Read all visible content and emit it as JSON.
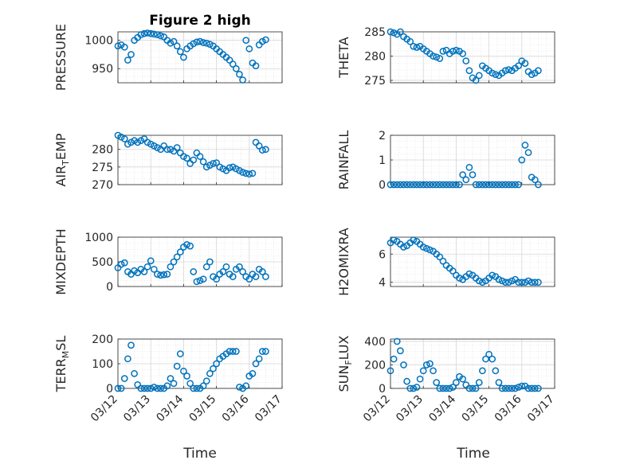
{
  "figure_title": "Figure 2 high",
  "xlabel": "Time",
  "x_ticks": [
    "03/12",
    "03/13",
    "03/14",
    "03/15",
    "03/16",
    "03/17"
  ],
  "colors": {
    "marker": "#0072BD",
    "axis": "#262626",
    "grid": "#dddddd"
  },
  "chart_data": [
    {
      "type": "scatter",
      "ylabel": "PRESSURE",
      "ylim": [
        925,
        1015
      ],
      "yticks": [
        950,
        1000
      ],
      "grid": true,
      "x": [
        0.0,
        0.1,
        0.2,
        0.3,
        0.4,
        0.5,
        0.6,
        0.7,
        0.8,
        0.9,
        1.0,
        1.1,
        1.2,
        1.3,
        1.4,
        1.5,
        1.6,
        1.7,
        1.8,
        1.9,
        2.0,
        2.1,
        2.2,
        2.3,
        2.4,
        2.5,
        2.6,
        2.7,
        2.8,
        2.9,
        3.0,
        3.1,
        3.2,
        3.3,
        3.4,
        3.5,
        3.6,
        3.7,
        3.8,
        3.9,
        4.0,
        4.1,
        4.2,
        4.3,
        4.4,
        4.5
      ],
      "y": [
        990,
        992,
        988,
        965,
        975,
        1000,
        1005,
        1010,
        1012,
        1013,
        1012,
        1011,
        1010,
        1008,
        1006,
        1000,
        995,
        998,
        990,
        980,
        970,
        985,
        990,
        994,
        997,
        998,
        996,
        995,
        993,
        990,
        985,
        980,
        975,
        970,
        965,
        958,
        950,
        940,
        930,
        1000,
        985,
        960,
        955,
        992,
        998,
        1001
      ]
    },
    {
      "type": "scatter",
      "ylabel": "THETA",
      "ylim": [
        274.5,
        285
      ],
      "yticks": [
        275,
        280,
        285
      ],
      "grid": true,
      "x": [
        0.0,
        0.1,
        0.2,
        0.3,
        0.4,
        0.5,
        0.6,
        0.7,
        0.8,
        0.9,
        1.0,
        1.1,
        1.2,
        1.3,
        1.4,
        1.5,
        1.6,
        1.7,
        1.8,
        1.9,
        2.0,
        2.1,
        2.2,
        2.3,
        2.4,
        2.5,
        2.6,
        2.7,
        2.8,
        2.9,
        3.0,
        3.1,
        3.2,
        3.3,
        3.4,
        3.5,
        3.6,
        3.7,
        3.8,
        3.9,
        4.0,
        4.1,
        4.2,
        4.3,
        4.4,
        4.5
      ],
      "y": [
        285,
        284.8,
        284.5,
        285,
        284,
        283.5,
        283,
        282,
        281.8,
        282,
        281.5,
        281,
        280.5,
        280,
        279.8,
        279.5,
        281,
        281.2,
        280.5,
        281,
        281.2,
        281,
        280.5,
        279,
        277,
        275.5,
        275,
        276,
        278,
        277.5,
        277,
        276.5,
        276.2,
        276,
        276.5,
        277,
        277.2,
        277,
        277.5,
        278,
        279,
        278.5,
        276.8,
        276.2,
        276.5,
        277
      ]
    },
    {
      "type": "scatter",
      "ylabel": "AIR_TEMP",
      "ylim": [
        270,
        284
      ],
      "yticks": [
        270,
        275,
        280
      ],
      "grid": true,
      "x": [
        0.0,
        0.1,
        0.2,
        0.3,
        0.4,
        0.5,
        0.6,
        0.7,
        0.8,
        0.9,
        1.0,
        1.1,
        1.2,
        1.3,
        1.4,
        1.5,
        1.6,
        1.7,
        1.8,
        1.9,
        2.0,
        2.1,
        2.2,
        2.3,
        2.4,
        2.5,
        2.6,
        2.7,
        2.8,
        2.9,
        3.0,
        3.1,
        3.2,
        3.3,
        3.4,
        3.5,
        3.6,
        3.7,
        3.8,
        3.9,
        4.0,
        4.1,
        4.2,
        4.3,
        4.4,
        4.5
      ],
      "y": [
        284,
        283.5,
        283,
        281.5,
        282,
        282.5,
        282,
        282.5,
        283,
        282,
        281.5,
        281,
        280.5,
        280,
        281,
        280,
        280,
        279.5,
        280.5,
        279,
        278,
        277.5,
        276,
        277,
        279,
        278,
        276.5,
        275,
        275.5,
        276,
        276.2,
        275,
        274.5,
        274,
        274.8,
        275,
        274.5,
        274,
        273.5,
        273.2,
        273,
        273.2,
        282,
        281,
        279.8,
        280
      ]
    },
    {
      "type": "scatter",
      "ylabel": "RAINFALL",
      "ylim": [
        0,
        2
      ],
      "yticks": [
        0,
        1,
        2
      ],
      "grid": true,
      "x": [
        0.0,
        0.1,
        0.2,
        0.3,
        0.4,
        0.5,
        0.6,
        0.7,
        0.8,
        0.9,
        1.0,
        1.1,
        1.2,
        1.3,
        1.4,
        1.5,
        1.6,
        1.7,
        1.8,
        1.9,
        2.0,
        2.1,
        2.2,
        2.3,
        2.4,
        2.5,
        2.6,
        2.7,
        2.8,
        2.9,
        3.0,
        3.1,
        3.2,
        3.3,
        3.4,
        3.5,
        3.6,
        3.7,
        3.8,
        3.9,
        4.0,
        4.1,
        4.2,
        4.3,
        4.4,
        4.5
      ],
      "y": [
        0,
        0,
        0,
        0,
        0,
        0,
        0,
        0,
        0,
        0,
        0,
        0,
        0,
        0,
        0,
        0,
        0,
        0,
        0,
        0,
        0,
        0,
        0.4,
        0.2,
        0.7,
        0.4,
        0,
        0,
        0,
        0,
        0,
        0,
        0,
        0,
        0,
        0,
        0,
        0,
        0,
        0,
        1,
        1.6,
        1.3,
        0.3,
        0.2,
        0
      ]
    },
    {
      "type": "scatter",
      "ylabel": "MIXDEPTH",
      "ylim": [
        0,
        1000
      ],
      "yticks": [
        0,
        500,
        1000
      ],
      "grid": true,
      "x": [
        0.0,
        0.1,
        0.2,
        0.3,
        0.4,
        0.5,
        0.6,
        0.7,
        0.8,
        0.9,
        1.0,
        1.1,
        1.2,
        1.3,
        1.4,
        1.5,
        1.6,
        1.7,
        1.8,
        1.9,
        2.0,
        2.1,
        2.2,
        2.3,
        2.4,
        2.5,
        2.6,
        2.7,
        2.8,
        2.9,
        3.0,
        3.1,
        3.2,
        3.3,
        3.4,
        3.5,
        3.6,
        3.7,
        3.8,
        3.9,
        4.0,
        4.1,
        4.2,
        4.3,
        4.4,
        4.5
      ],
      "y": [
        380,
        450,
        480,
        300,
        250,
        320,
        280,
        350,
        300,
        400,
        520,
        350,
        250,
        230,
        240,
        250,
        400,
        500,
        600,
        700,
        800,
        850,
        820,
        300,
        100,
        120,
        150,
        400,
        500,
        200,
        150,
        250,
        300,
        400,
        250,
        200,
        350,
        400,
        300,
        200,
        150,
        250,
        200,
        350,
        300,
        200
      ]
    },
    {
      "type": "scatter",
      "ylabel": "H2OMIXRA",
      "ylim": [
        3.7,
        7.2
      ],
      "yticks": [
        4,
        6
      ],
      "grid": true,
      "x": [
        0.0,
        0.1,
        0.2,
        0.3,
        0.4,
        0.5,
        0.6,
        0.7,
        0.8,
        0.9,
        1.0,
        1.1,
        1.2,
        1.3,
        1.4,
        1.5,
        1.6,
        1.7,
        1.8,
        1.9,
        2.0,
        2.1,
        2.2,
        2.3,
        2.4,
        2.5,
        2.6,
        2.7,
        2.8,
        2.9,
        3.0,
        3.1,
        3.2,
        3.3,
        3.4,
        3.5,
        3.6,
        3.7,
        3.8,
        3.9,
        4.0,
        4.1,
        4.2,
        4.3,
        4.4,
        4.5
      ],
      "y": [
        6.8,
        7.0,
        6.9,
        6.7,
        6.5,
        6.6,
        6.8,
        7.0,
        6.9,
        6.7,
        6.5,
        6.4,
        6.3,
        6.2,
        6.0,
        5.8,
        5.5,
        5.2,
        5.0,
        4.8,
        4.5,
        4.3,
        4.2,
        4.4,
        4.6,
        4.5,
        4.3,
        4.1,
        4.0,
        4.1,
        4.3,
        4.5,
        4.4,
        4.2,
        4.1,
        4.0,
        4.0,
        4.1,
        4.2,
        4.0,
        4.0,
        4.0,
        4.1,
        4.0,
        4.0,
        4.0
      ]
    },
    {
      "type": "scatter",
      "ylabel": "TERR_MSL",
      "ylim": [
        0,
        200
      ],
      "yticks": [
        0,
        100,
        200
      ],
      "grid": true,
      "x": [
        0.0,
        0.1,
        0.2,
        0.3,
        0.4,
        0.5,
        0.6,
        0.7,
        0.8,
        0.9,
        1.0,
        1.1,
        1.2,
        1.3,
        1.4,
        1.5,
        1.6,
        1.7,
        1.8,
        1.9,
        2.0,
        2.1,
        2.2,
        2.3,
        2.4,
        2.5,
        2.6,
        2.7,
        2.8,
        2.9,
        3.0,
        3.1,
        3.2,
        3.3,
        3.4,
        3.5,
        3.6,
        3.7,
        3.8,
        3.9,
        4.0,
        4.1,
        4.2,
        4.3,
        4.4,
        4.5
      ],
      "y": [
        0,
        0,
        40,
        120,
        175,
        60,
        15,
        0,
        0,
        0,
        0,
        5,
        0,
        0,
        0,
        10,
        40,
        20,
        90,
        140,
        70,
        50,
        20,
        0,
        0,
        0,
        10,
        30,
        60,
        80,
        100,
        120,
        130,
        140,
        150,
        150,
        150,
        5,
        0,
        10,
        50,
        60,
        100,
        120,
        150,
        150
      ]
    },
    {
      "type": "scatter",
      "ylabel": "SUN_FLUX",
      "ylim": [
        0,
        420
      ],
      "yticks": [
        0,
        200,
        400
      ],
      "grid": true,
      "x": [
        0.0,
        0.1,
        0.2,
        0.3,
        0.4,
        0.5,
        0.6,
        0.7,
        0.8,
        0.9,
        1.0,
        1.1,
        1.2,
        1.3,
        1.4,
        1.5,
        1.6,
        1.7,
        1.8,
        1.9,
        2.0,
        2.1,
        2.2,
        2.3,
        2.4,
        2.5,
        2.6,
        2.7,
        2.8,
        2.9,
        3.0,
        3.1,
        3.2,
        3.3,
        3.4,
        3.5,
        3.6,
        3.7,
        3.8,
        3.9,
        4.0,
        4.1,
        4.2,
        4.3,
        4.4,
        4.5
      ],
      "y": [
        150,
        250,
        400,
        320,
        200,
        60,
        0,
        0,
        10,
        80,
        150,
        200,
        210,
        150,
        50,
        0,
        0,
        0,
        0,
        10,
        50,
        100,
        80,
        30,
        0,
        0,
        0,
        50,
        150,
        250,
        290,
        250,
        150,
        50,
        0,
        0,
        0,
        0,
        0,
        10,
        20,
        20,
        0,
        0,
        0,
        0
      ]
    }
  ]
}
